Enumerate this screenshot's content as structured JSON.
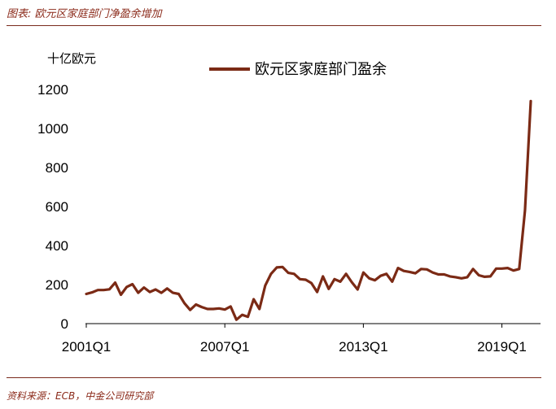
{
  "figure": {
    "title": "图表: 欧元区家庭部门净盈余增加",
    "source": "资料来源：ECB，中金公司研究部"
  },
  "colors": {
    "series": "#7B2A15",
    "rule": "#7A2A1C",
    "title_text": "#8B2A1A"
  },
  "chart_data": {
    "type": "line",
    "title": "",
    "ylabel": "十亿欧元",
    "xlabel": "",
    "ylim": [
      0,
      1200
    ],
    "yticks": [
      0,
      200,
      400,
      600,
      800,
      1000,
      1200
    ],
    "xtick_labels": [
      "2001Q1",
      "2007Q1",
      "2013Q1",
      "2019Q1"
    ],
    "grid": false,
    "legend": "top-center",
    "x": [
      "2001Q1",
      "2001Q2",
      "2001Q3",
      "2001Q4",
      "2002Q1",
      "2002Q2",
      "2002Q3",
      "2002Q4",
      "2003Q1",
      "2003Q2",
      "2003Q3",
      "2003Q4",
      "2004Q1",
      "2004Q2",
      "2004Q3",
      "2004Q4",
      "2005Q1",
      "2005Q2",
      "2005Q3",
      "2005Q4",
      "2006Q1",
      "2006Q2",
      "2006Q3",
      "2006Q4",
      "2007Q1",
      "2007Q2",
      "2007Q3",
      "2007Q4",
      "2008Q1",
      "2008Q2",
      "2008Q3",
      "2008Q4",
      "2009Q1",
      "2009Q2",
      "2009Q3",
      "2009Q4",
      "2010Q1",
      "2010Q2",
      "2010Q3",
      "2010Q4",
      "2011Q1",
      "2011Q2",
      "2011Q3",
      "2011Q4",
      "2012Q1",
      "2012Q2",
      "2012Q3",
      "2012Q4",
      "2013Q1",
      "2013Q2",
      "2013Q3",
      "2013Q4",
      "2014Q1",
      "2014Q2",
      "2014Q3",
      "2014Q4",
      "2015Q1",
      "2015Q2",
      "2015Q3",
      "2015Q4",
      "2016Q1",
      "2016Q2",
      "2016Q3",
      "2016Q4",
      "2017Q1",
      "2017Q2",
      "2017Q3",
      "2017Q4",
      "2018Q1",
      "2018Q2",
      "2018Q3",
      "2018Q4",
      "2019Q1",
      "2019Q2",
      "2019Q3",
      "2019Q4",
      "2020Q1",
      "2020Q2"
    ],
    "series": [
      {
        "name": "欧元区家庭部门盈余",
        "values": [
          152,
          160,
          172,
          172,
          176,
          210,
          148,
          188,
          202,
          158,
          185,
          162,
          175,
          158,
          180,
          158,
          152,
          105,
          70,
          98,
          85,
          75,
          75,
          78,
          72,
          88,
          20,
          45,
          35,
          125,
          75,
          195,
          255,
          288,
          290,
          260,
          255,
          228,
          225,
          208,
          162,
          242,
          178,
          228,
          215,
          255,
          212,
          175,
          262,
          232,
          222,
          245,
          255,
          215,
          285,
          270,
          265,
          258,
          280,
          278,
          262,
          252,
          252,
          242,
          238,
          232,
          238,
          280,
          248,
          240,
          242,
          282,
          282,
          285,
          272,
          280,
          580,
          1140
        ]
      }
    ]
  }
}
